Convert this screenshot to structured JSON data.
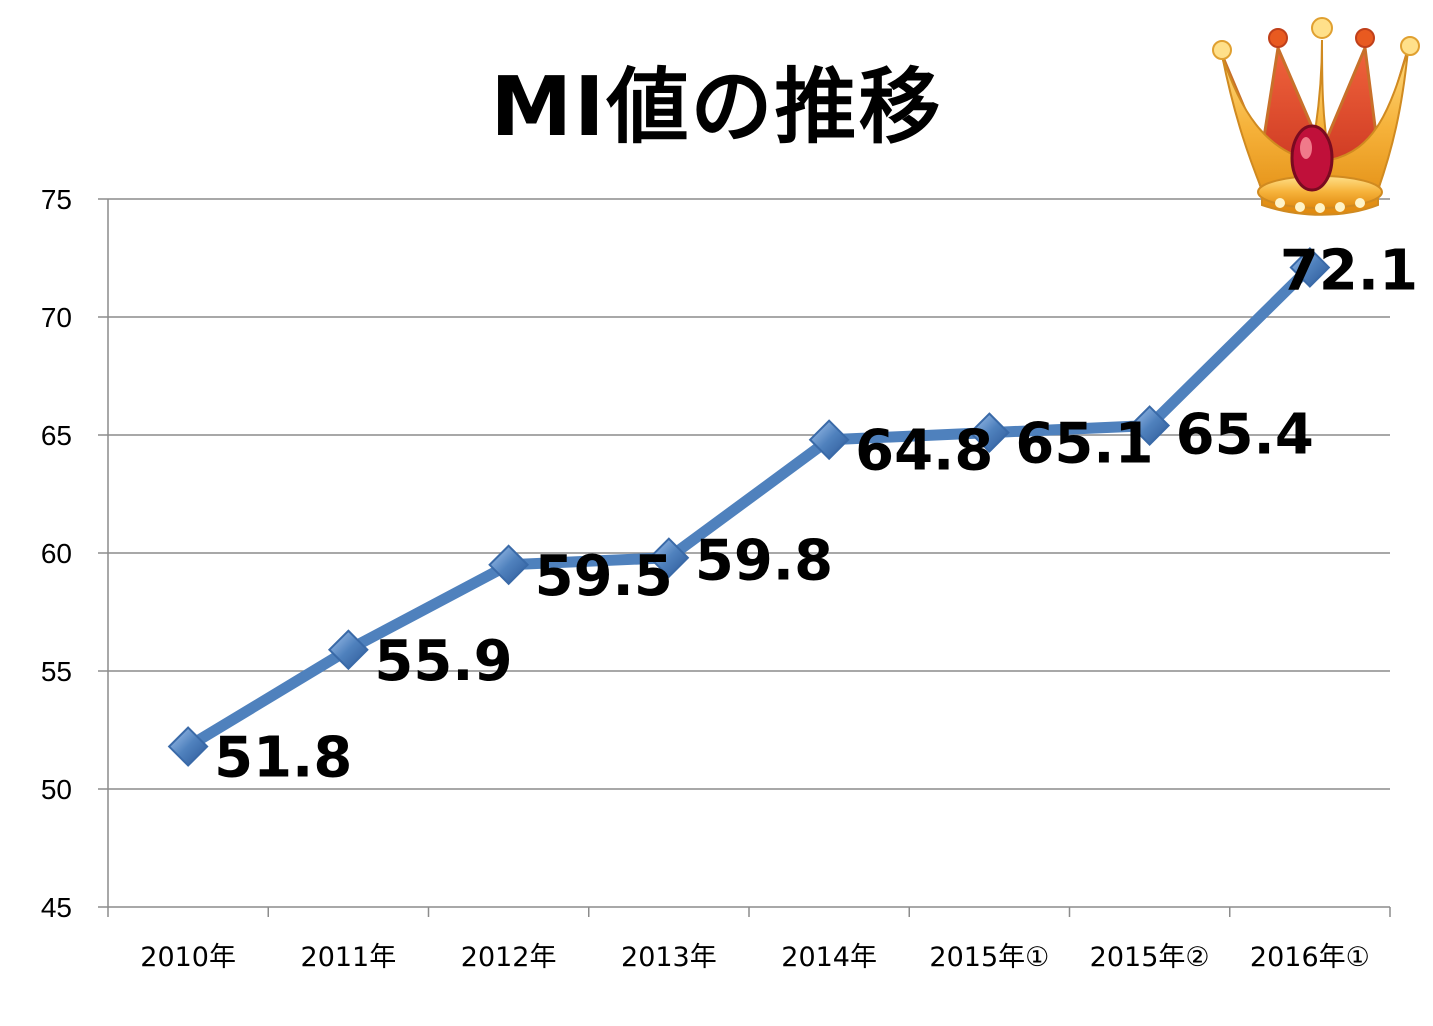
{
  "chart_data": {
    "type": "line",
    "title": "MI値の推移",
    "categories": [
      "2010年",
      "2011年",
      "2012年",
      "2013年",
      "2014年",
      "2015年①",
      "2015年②",
      "2016年①"
    ],
    "series": [
      {
        "values": [
          51.8,
          55.9,
          59.5,
          59.8,
          64.8,
          65.1,
          65.4,
          72.1
        ]
      }
    ],
    "data_labels": [
      "51.8",
      "55.9",
      "59.5",
      "59.8",
      "64.8",
      "65.1",
      "65.4",
      "72.1"
    ],
    "ylim": [
      45,
      75
    ],
    "yticks": [
      45,
      50,
      55,
      60,
      65,
      70,
      75
    ],
    "xlabel": "",
    "ylabel": "",
    "grid": true,
    "legend": "none",
    "line_color": "#4F81BD",
    "marker_shape": "diamond"
  },
  "decoration": {
    "icon": "crown-icon"
  }
}
